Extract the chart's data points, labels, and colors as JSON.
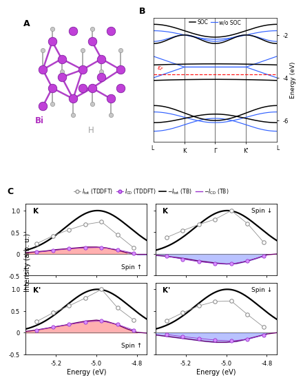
{
  "fig_width": 3.72,
  "fig_height": 5.04,
  "panel_C_xlim": [
    -5.35,
    -4.75
  ],
  "panel_C_ylim": [
    -0.5,
    1.15
  ],
  "panel_C_xticks": [
    -5.2,
    -5.0,
    -4.8
  ],
  "panel_C_yticks": [
    -0.5,
    0.0,
    0.5,
    1.0
  ],
  "TB_x": [
    -5.35,
    -5.3,
    -5.25,
    -5.2,
    -5.15,
    -5.1,
    -5.05,
    -5.0,
    -4.95,
    -4.9,
    -4.85,
    -4.8,
    -4.75
  ],
  "TB_ICD_K_up": [
    0.03,
    0.05,
    0.07,
    0.1,
    0.12,
    0.14,
    0.16,
    0.16,
    0.14,
    0.09,
    0.03,
    -0.01,
    -0.01
  ],
  "TB_ICD_K_down": [
    -0.03,
    -0.05,
    -0.08,
    -0.11,
    -0.15,
    -0.18,
    -0.21,
    -0.23,
    -0.22,
    -0.17,
    -0.1,
    -0.02,
    0.0
  ],
  "TB_ICD_Kp_up": [
    0.03,
    0.06,
    0.1,
    0.14,
    0.18,
    0.23,
    0.27,
    0.29,
    0.26,
    0.19,
    0.09,
    0.01,
    -0.01
  ],
  "TB_ICD_Kp_down": [
    -0.05,
    -0.08,
    -0.11,
    -0.14,
    -0.17,
    -0.2,
    -0.22,
    -0.22,
    -0.2,
    -0.15,
    -0.09,
    -0.03,
    0.0
  ],
  "TDDFT_Itot_x": [
    -5.295,
    -5.215,
    -5.135,
    -5.055,
    -4.975,
    -4.895,
    -4.815
  ],
  "TDDFT_Itot_K_up": [
    0.24,
    0.42,
    0.56,
    0.68,
    0.74,
    0.44,
    0.14
  ],
  "TDDFT_Itot_K_down": [
    0.38,
    0.54,
    0.68,
    0.8,
    1.0,
    0.7,
    0.27
  ],
  "TDDFT_Itot_Kp_up": [
    0.26,
    0.46,
    0.62,
    0.8,
    1.0,
    0.57,
    0.29
  ],
  "TDDFT_Itot_Kp_down": [
    0.28,
    0.46,
    0.62,
    0.72,
    0.73,
    0.42,
    0.13
  ],
  "TDDFT_ICD_x": [
    -5.295,
    -5.215,
    -5.135,
    -5.055,
    -4.975,
    -4.895,
    -4.815
  ],
  "TDDFT_ICD_K_up": [
    0.04,
    0.08,
    0.12,
    0.14,
    0.15,
    0.1,
    0.02
  ],
  "TDDFT_ICD_K_down": [
    -0.05,
    -0.12,
    -0.18,
    -0.22,
    -0.23,
    -0.16,
    -0.05
  ],
  "TDDFT_ICD_Kp_up": [
    0.06,
    0.13,
    0.19,
    0.25,
    0.27,
    0.19,
    0.06
  ],
  "TDDFT_ICD_Kp_down": [
    -0.04,
    -0.09,
    -0.13,
    -0.17,
    -0.19,
    -0.15,
    -0.05
  ],
  "color_gray": "#909090",
  "color_purple": "#9932CC",
  "color_darkpurple": "#6B006B",
  "color_black": "#000000",
  "color_fill_red": "#FF7070",
  "color_fill_blue": "#8090FF",
  "band_yticks": [
    -6,
    -4,
    -2
  ],
  "band_ylim": [
    -7.0,
    -1.2
  ],
  "fermi_level": -3.85
}
